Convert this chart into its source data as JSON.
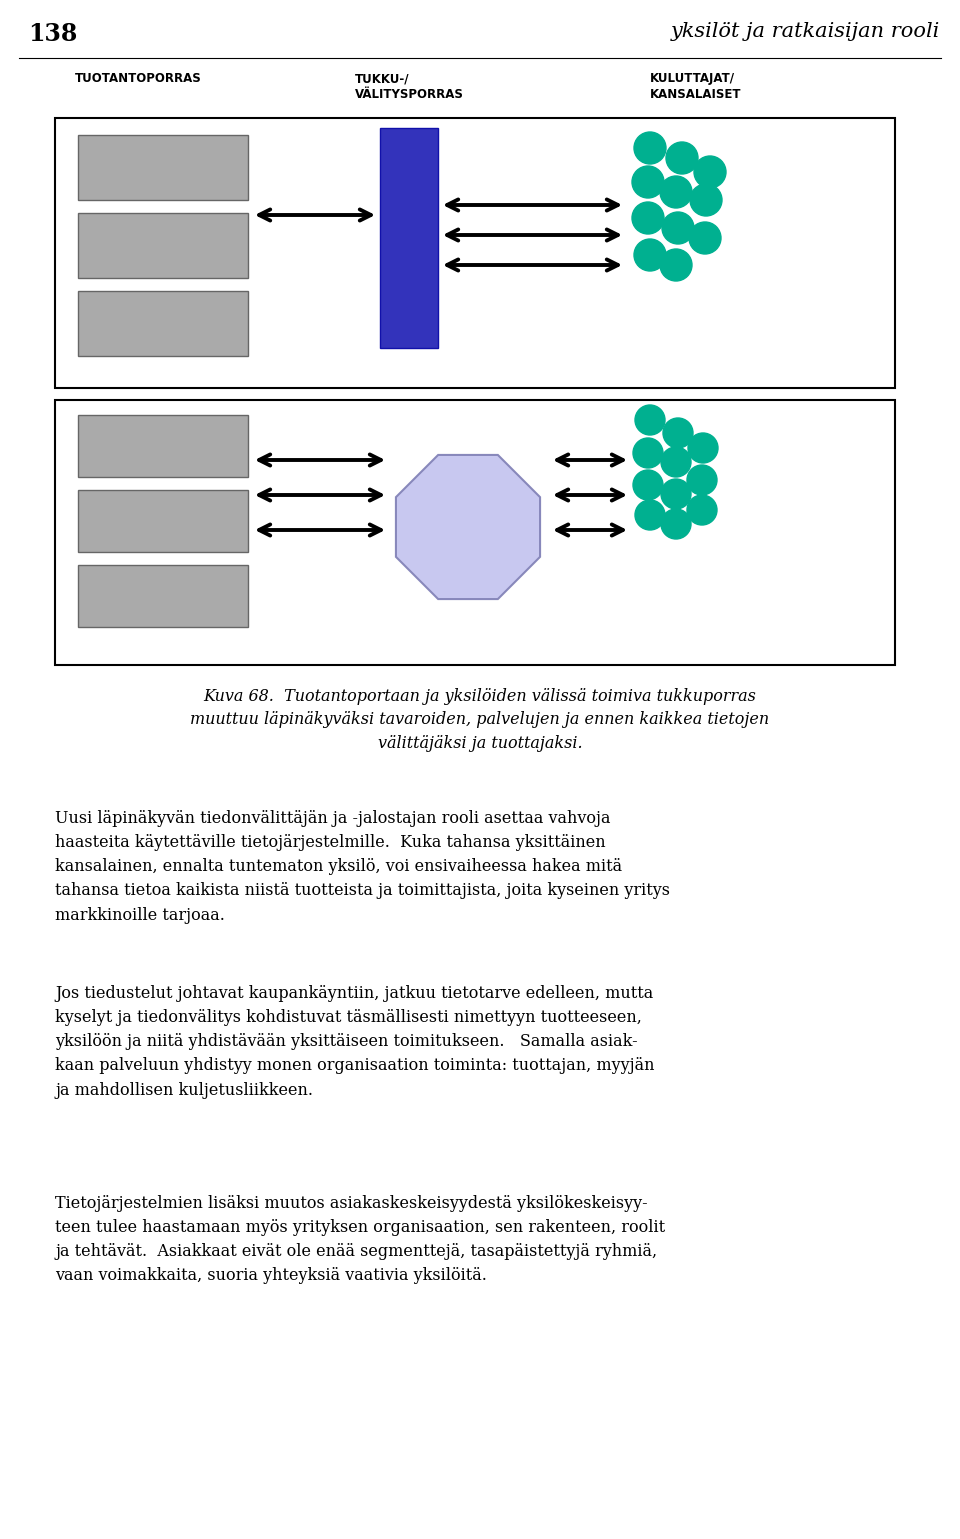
{
  "page_number": "138",
  "header_title": "yksilöt ja ratkaisijan rooli",
  "bg_color": "#ffffff",
  "label_tuotanto": "TUOTANTOPORRAS",
  "label_tukku": "TUKKU-/\nVÄLITYSPORRAS",
  "label_kuluttaja": "KULUTTAJAT/\nKANSALAISET",
  "gray_box_color": "#aaaaaa",
  "blue_rect_color": "#3333bb",
  "octagon_color": "#c8c8f0",
  "circle_color": "#00b090",
  "caption": "Kuva 68.  Tuotantoportaan ja yksilöiden välissä toimiva tukkuporras\nmuuttuu läpinäkyväksi tavaroiden, palvelujen ja ennen kaikkea tietojen\nvälittäjäksi ja tuottajaksi.",
  "para1": "Uusi läpinäkyvän tiedonvälittäjän ja -jalostajan rooli asettaa vahvoja\nhaasteita käytettäville tietojärjestelmille.  Kuka tahansa yksittäinen\nkansalainen, ennalta tuntematon yksilö, voi ensivaiheessa hakea mitä\ntahansa tietoa kaikista niistä tuotteista ja toimittajista, joita kyseinen yritys\nmarkkinoille tarjoaa.",
  "para2": "Jos tiedustelut johtavat kaupankäyntiin, jatkuu tietotarve edelleen, mutta\nkyselyt ja tiedonvälitys kohdistuvat täsmällisesti nimettyyn tuotteeseen,\nyksilöön ja niitä yhdistävään yksittäiseen toimitukseen.   Samalla asiak-\nkaan palveluun yhdistyy monen organisaation toiminta: tuottajan, myyjän\nja mahdollisen kuljetusliikkeen.",
  "para3": "Tietojärjestelmien lisäksi muutos asiakaskeskeisyydestä yksilökeskeisyy-\nteen tulee haastamaan myös yrityksen organisaation, sen rakenteen, roolit\nja tehtävät.  Asiakkaat eivät ole enää segmenttejä, tasapäistettyjä ryhmiä,\nvaan voimakkaita, suoria yhteyksiä vaativia yksilöitä."
}
